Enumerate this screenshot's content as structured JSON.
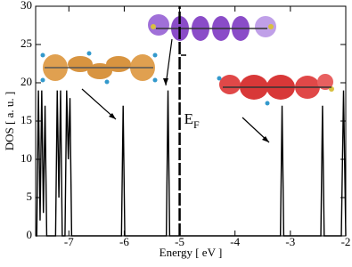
{
  "chart_data": {
    "type": "line",
    "x_label": "Energy [ eV ]",
    "y_label": "DOS [ a. u. ]",
    "xlim": [
      -7.6,
      -2
    ],
    "ylim": [
      0,
      30
    ],
    "xticks": [
      -7,
      -6,
      -5,
      -4,
      -3,
      -2
    ],
    "yticks": [
      0,
      5,
      10,
      15,
      20,
      25,
      30
    ],
    "series": [
      {
        "color": "#000000",
        "x": [
          -7.6,
          -7.58,
          -7.55,
          -7.52,
          -7.49,
          -7.46,
          -7.43,
          -7.4,
          -7.24,
          -7.21,
          -7.18,
          -7.15,
          -7.12,
          -7.07,
          -7.04,
          -7.01,
          -6.98,
          -6.95,
          -6.05,
          -6.02,
          -5.99,
          -5.24,
          -5.21,
          -5.18,
          -3.18,
          -3.15,
          -3.12,
          -2.45,
          -2.42,
          -2.39,
          -2.08,
          -2.04,
          -2.0
        ],
        "values": [
          0,
          0,
          19,
          2,
          19,
          3,
          17,
          0,
          0,
          19,
          5,
          19,
          0,
          0,
          19,
          10,
          18,
          0,
          0,
          17,
          0,
          0,
          19,
          0,
          0,
          17,
          0,
          0,
          17,
          0,
          0,
          19,
          0
        ]
      }
    ],
    "fermi_level": {
      "x": -5,
      "label": "E",
      "subscript": "F"
    }
  }
}
